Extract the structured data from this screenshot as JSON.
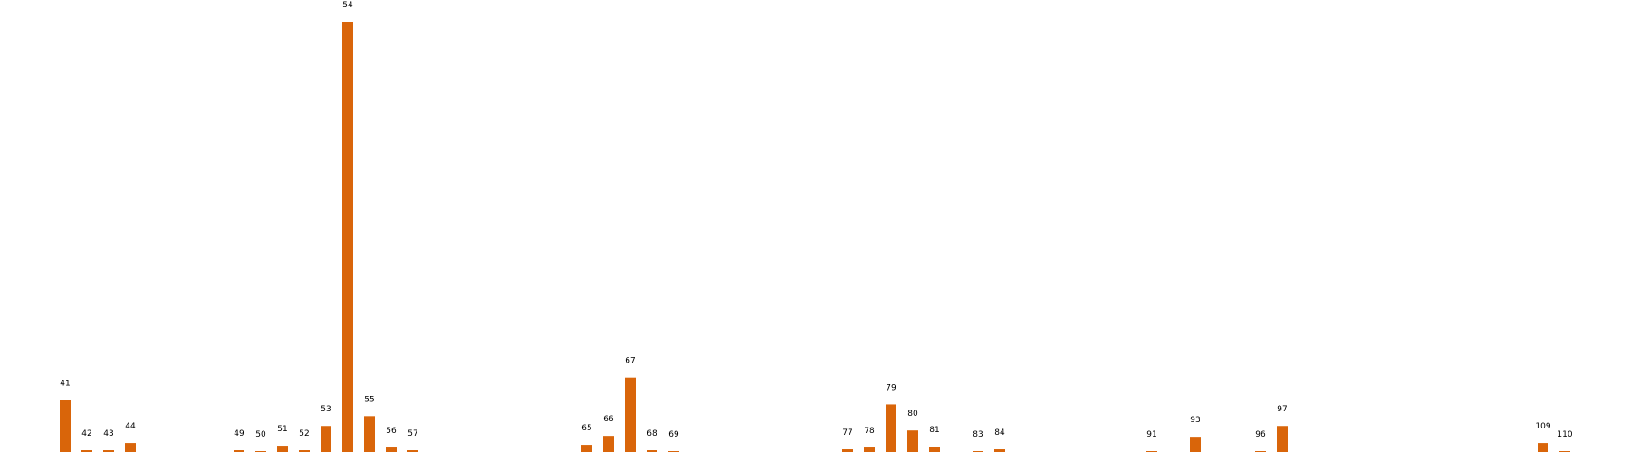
{
  "chart_data": {
    "type": "bar",
    "color": "#d9650a",
    "x": [
      41,
      42,
      43,
      44,
      49,
      50,
      51,
      52,
      53,
      54,
      55,
      56,
      57,
      65,
      66,
      67,
      68,
      69,
      77,
      78,
      79,
      80,
      81,
      83,
      84,
      91,
      93,
      96,
      97,
      109,
      110
    ],
    "labels": [
      "41",
      "42",
      "43",
      "44",
      "49",
      "50",
      "51",
      "52",
      "53",
      "54",
      "55",
      "56",
      "57",
      "65",
      "66",
      "67",
      "68",
      "69",
      "77",
      "78",
      "79",
      "80",
      "81",
      "83",
      "84",
      "91",
      "93",
      "96",
      "97",
      "109",
      "110"
    ],
    "values": [
      58,
      2,
      2,
      10,
      2,
      1,
      7,
      2,
      29,
      480,
      40,
      5,
      2,
      8,
      18,
      83,
      2,
      1,
      3,
      5,
      53,
      24,
      6,
      1,
      3,
      1,
      17,
      1,
      29,
      10,
      1
    ],
    "xlim": [
      38,
      113
    ],
    "ylim": [
      0,
      480
    ],
    "grid": false,
    "legend": "none"
  }
}
